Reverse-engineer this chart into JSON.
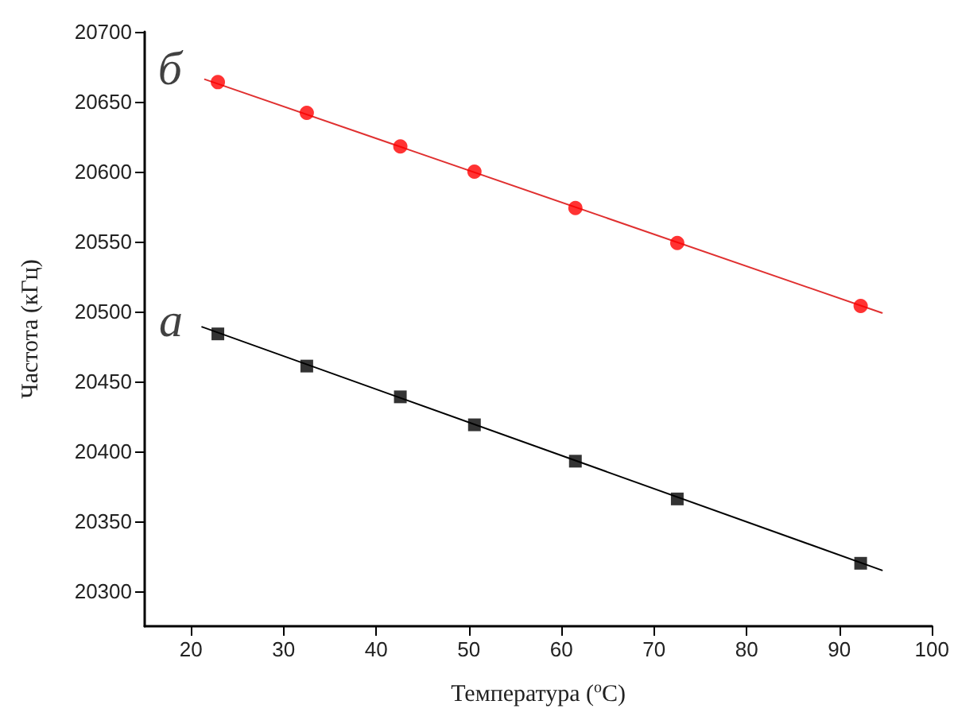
{
  "chart_data": {
    "type": "scatter",
    "xlabel": "Температура ($^{o}$C)",
    "ylabel": "Частота (кГц)",
    "xlim": [
      15,
      100
    ],
    "xticks": [
      20,
      30,
      40,
      50,
      60,
      70,
      80,
      90,
      100
    ],
    "ylim": [
      20275,
      20700
    ],
    "yticks": [
      20300,
      20350,
      20400,
      20450,
      20500,
      20550,
      20600,
      20650,
      20700
    ],
    "grid": false,
    "legend": false,
    "series": [
      {
        "name": "б",
        "marker": "circle",
        "color": "#ff0000",
        "x": [
          22.9,
          32.5,
          42.6,
          50.6,
          61.5,
          72.5,
          92.3
        ],
        "values": [
          20664,
          20642,
          20618,
          20600,
          20574,
          20549,
          20504
        ]
      },
      {
        "type": "line",
        "marker": "none",
        "color": "#e03030",
        "x": [
          21.5,
          94.6
        ],
        "values": [
          20666,
          20499
        ]
      },
      {
        "name": "а",
        "marker": "square",
        "color": "#000000",
        "x": [
          22.9,
          32.5,
          42.6,
          50.6,
          61.5,
          72.5,
          92.3
        ],
        "values": [
          20484,
          20461,
          20439,
          20419,
          20393,
          20366,
          20320
        ]
      },
      {
        "type": "line",
        "marker": "none",
        "color": "#000000",
        "x": [
          21.2,
          94.6
        ],
        "values": [
          20489,
          20315
        ]
      }
    ]
  }
}
